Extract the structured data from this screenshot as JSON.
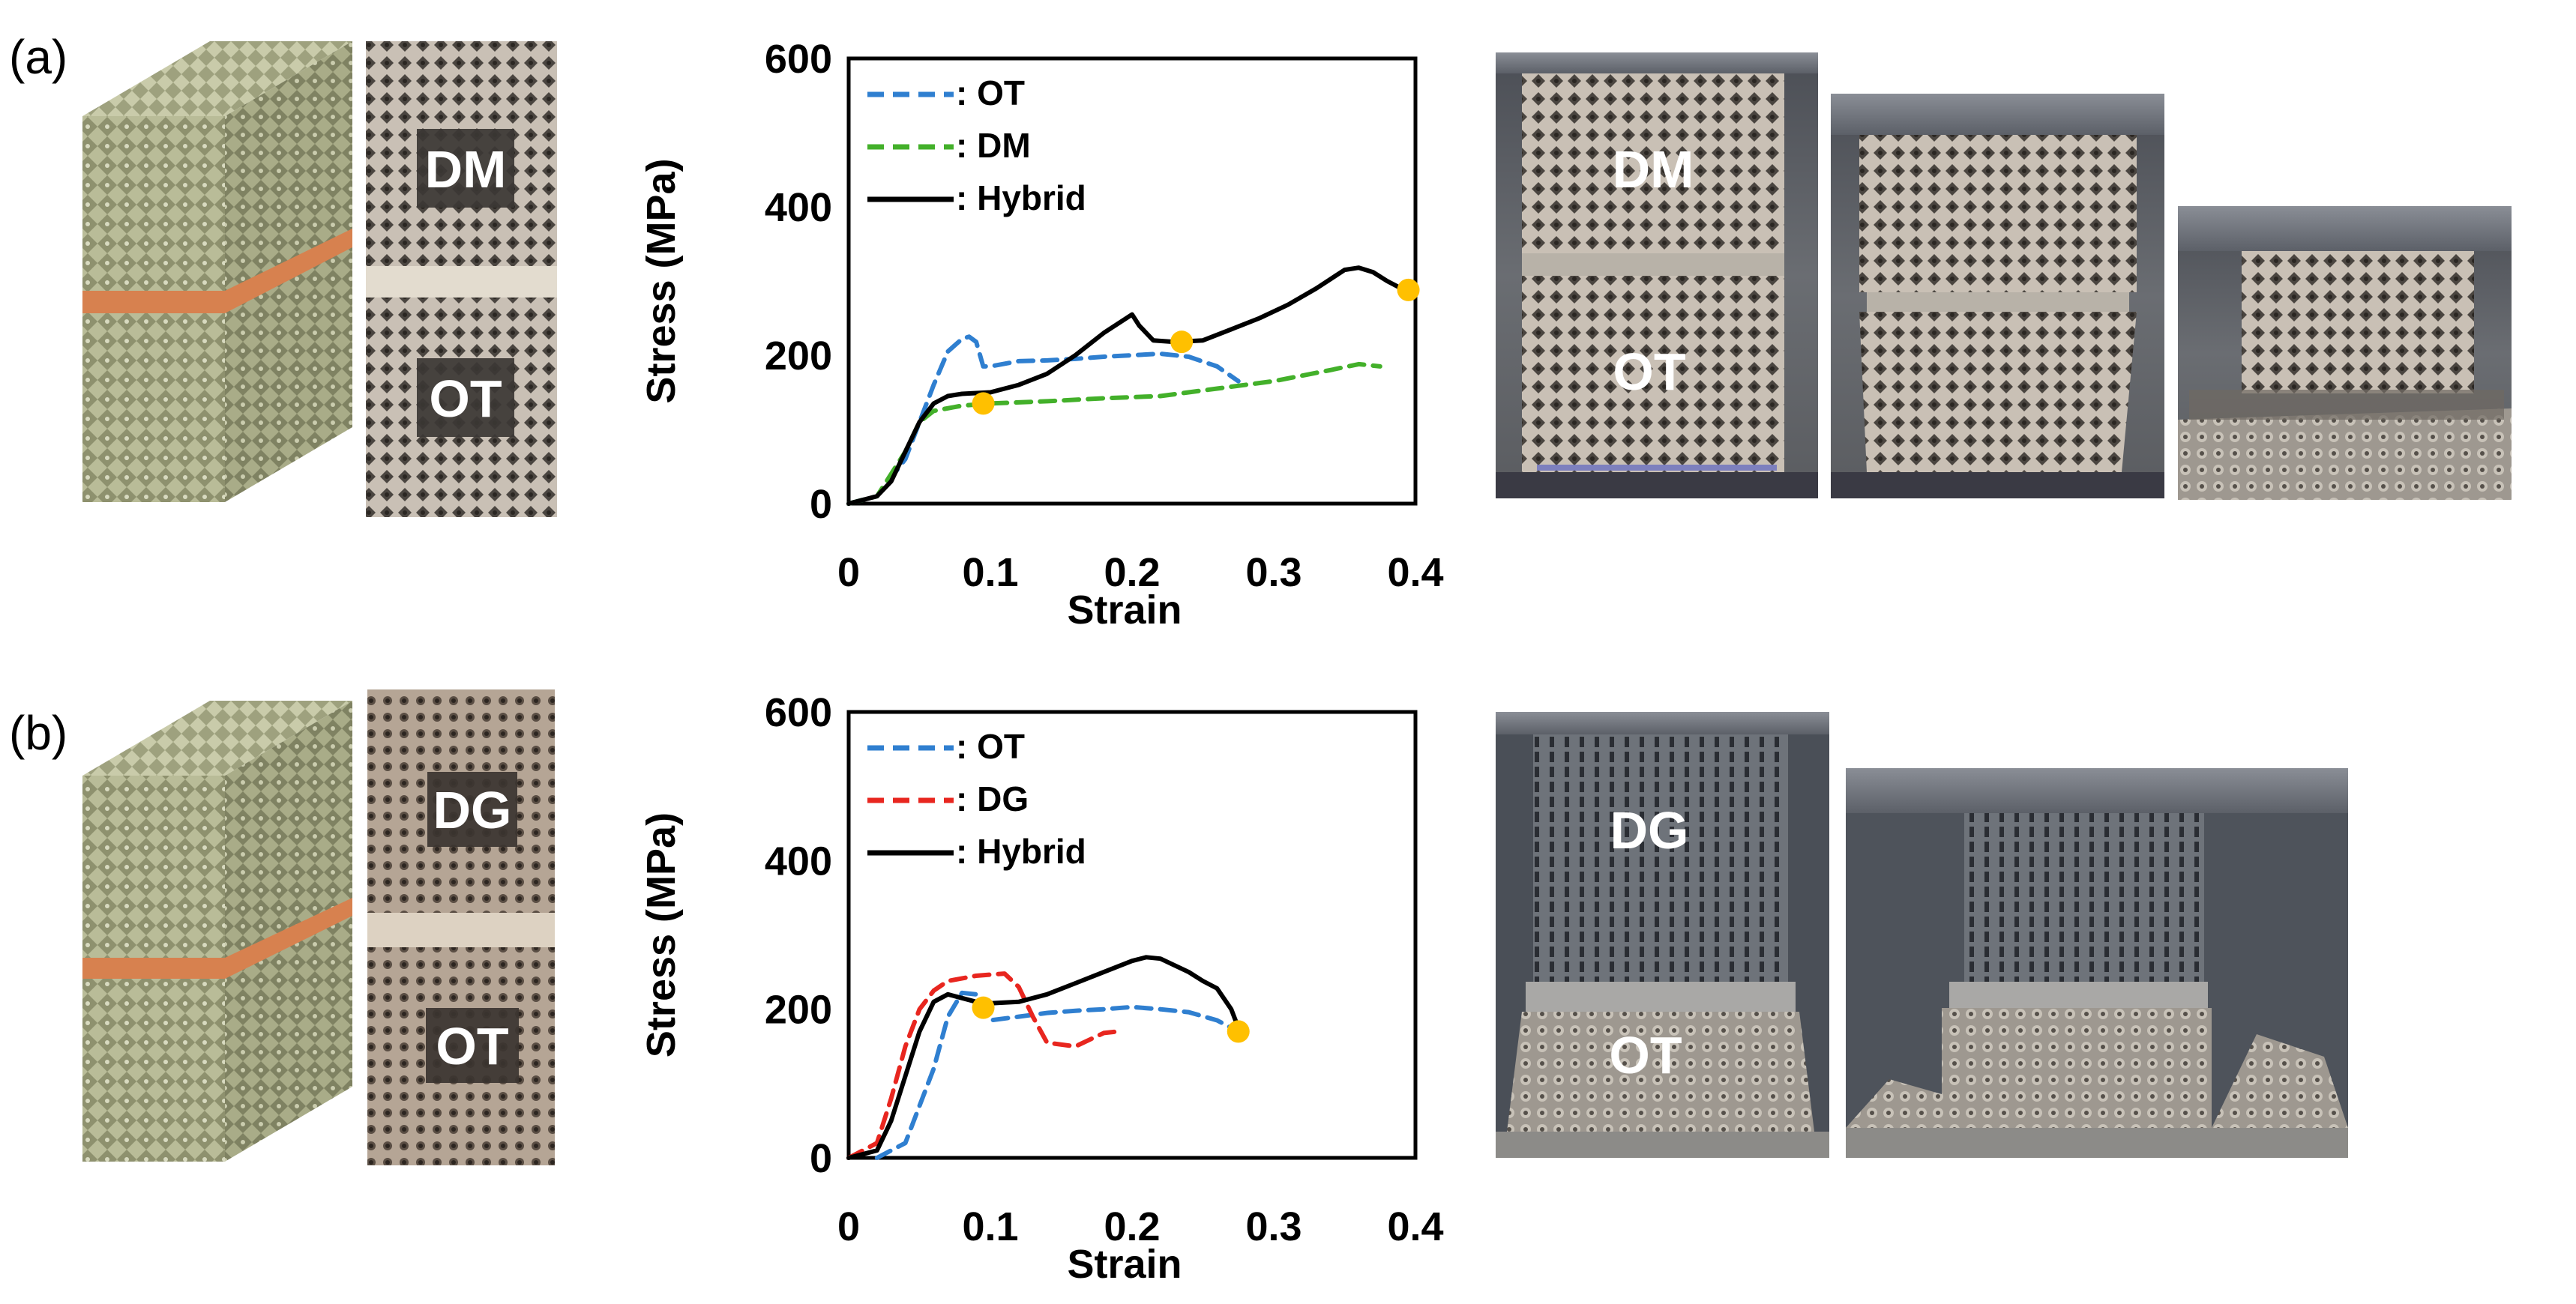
{
  "panels": {
    "a": {
      "tag": "(a)",
      "specimen_top_label": "DM",
      "specimen_bottom_label": "OT",
      "photo_top_label": "DM",
      "photo_bottom_label": "OT"
    },
    "b": {
      "tag": "(b)",
      "specimen_top_label": "DG",
      "specimen_bottom_label": "OT",
      "photo_top_label": "DG",
      "photo_bottom_label": "OT"
    }
  },
  "colors": {
    "ot": "#2F7FD0",
    "dm": "#43B02A",
    "dg": "#E8261F",
    "hybrid": "#000000",
    "marker": "#FFC000",
    "lattice": "#9C9F7C",
    "interface": "#D7814F"
  },
  "chart_data": [
    {
      "type": "line",
      "panel": "a",
      "xlabel": "Strain",
      "ylabel": "Stress (MPa)",
      "xlim": [
        0,
        0.4
      ],
      "ylim": [
        0,
        600
      ],
      "xticks": [
        "0",
        "0.1",
        "0.2",
        "0.3",
        "0.4"
      ],
      "yticks": [
        "0",
        "200",
        "400",
        "600"
      ],
      "legend_position": "top-left",
      "series": [
        {
          "name": "OT",
          "legend_label": ": OT",
          "style": "dashed",
          "color_key": "ot",
          "x": [
            0,
            0.02,
            0.04,
            0.06,
            0.07,
            0.08,
            0.085,
            0.09,
            0.095,
            0.1,
            0.12,
            0.14,
            0.16,
            0.18,
            0.2,
            0.22,
            0.24,
            0.26,
            0.275
          ],
          "y": [
            0,
            10,
            60,
            160,
            205,
            222,
            225,
            218,
            185,
            185,
            192,
            193,
            195,
            198,
            200,
            202,
            198,
            185,
            165
          ]
        },
        {
          "name": "DM",
          "legend_label": ": DM",
          "style": "dashed",
          "color_key": "dm",
          "x": [
            0,
            0.02,
            0.04,
            0.05,
            0.06,
            0.08,
            0.1,
            0.14,
            0.18,
            0.22,
            0.26,
            0.3,
            0.34,
            0.36,
            0.375
          ],
          "y": [
            0,
            10,
            70,
            110,
            125,
            132,
            135,
            138,
            142,
            145,
            155,
            165,
            180,
            188,
            185
          ]
        },
        {
          "name": "Hybrid",
          "legend_label": ": Hybrid",
          "style": "solid",
          "color_key": "hybrid",
          "x": [
            0,
            0.02,
            0.03,
            0.04,
            0.05,
            0.06,
            0.07,
            0.08,
            0.1,
            0.12,
            0.14,
            0.16,
            0.18,
            0.2,
            0.205,
            0.215,
            0.23,
            0.25,
            0.27,
            0.29,
            0.31,
            0.33,
            0.35,
            0.36,
            0.37,
            0.38,
            0.39
          ],
          "y": [
            0,
            10,
            30,
            70,
            110,
            135,
            145,
            148,
            150,
            160,
            175,
            200,
            230,
            255,
            240,
            220,
            218,
            220,
            235,
            250,
            268,
            290,
            315,
            318,
            312,
            300,
            290
          ]
        }
      ],
      "markers": [
        {
          "x": 0.095,
          "y": 135
        },
        {
          "x": 0.235,
          "y": 218
        },
        {
          "x": 0.395,
          "y": 288
        }
      ]
    },
    {
      "type": "line",
      "panel": "b",
      "xlabel": "Strain",
      "ylabel": "Stress (MPa)",
      "xlim": [
        0,
        0.4
      ],
      "ylim": [
        0,
        600
      ],
      "xticks": [
        "0",
        "0.1",
        "0.2",
        "0.3",
        "0.4"
      ],
      "yticks": [
        "0",
        "200",
        "400",
        "600"
      ],
      "legend_position": "top-left",
      "series": [
        {
          "name": "OT",
          "legend_label": ": OT",
          "style": "dashed",
          "color_key": "ot",
          "x": [
            0.02,
            0.04,
            0.06,
            0.07,
            0.08,
            0.09,
            0.095,
            0.1,
            0.12,
            0.14,
            0.16,
            0.18,
            0.2,
            0.22,
            0.24,
            0.26,
            0.275
          ],
          "y": [
            0,
            20,
            120,
            190,
            222,
            220,
            200,
            185,
            190,
            195,
            198,
            200,
            203,
            200,
            196,
            185,
            170
          ]
        },
        {
          "name": "DG",
          "legend_label": ": DG",
          "style": "dashed",
          "color_key": "dg",
          "x": [
            0,
            0.02,
            0.03,
            0.04,
            0.05,
            0.06,
            0.07,
            0.09,
            0.11,
            0.12,
            0.13,
            0.14,
            0.16,
            0.18,
            0.19
          ],
          "y": [
            0,
            20,
            80,
            150,
            200,
            225,
            238,
            245,
            248,
            230,
            190,
            155,
            150,
            168,
            170
          ]
        },
        {
          "name": "Hybrid",
          "legend_label": ": Hybrid",
          "style": "solid",
          "color_key": "hybrid",
          "x": [
            0,
            0.02,
            0.03,
            0.04,
            0.05,
            0.06,
            0.07,
            0.08,
            0.09,
            0.1,
            0.12,
            0.14,
            0.16,
            0.18,
            0.2,
            0.21,
            0.22,
            0.24,
            0.25,
            0.26,
            0.27,
            0.275
          ],
          "y": [
            0,
            10,
            50,
            110,
            170,
            210,
            220,
            215,
            210,
            208,
            210,
            220,
            235,
            250,
            265,
            270,
            268,
            250,
            238,
            228,
            200,
            175
          ]
        }
      ],
      "markers": [
        {
          "x": 0.095,
          "y": 202
        },
        {
          "x": 0.275,
          "y": 170
        }
      ]
    }
  ]
}
